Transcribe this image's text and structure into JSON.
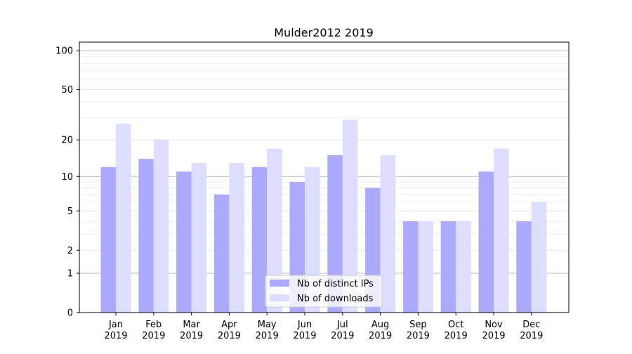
{
  "chart_data": {
    "type": "bar",
    "title": "Mulder2012 2019",
    "xlabel": "",
    "ylabel": "",
    "yscale": "symlog",
    "ylim": [
      0,
      116
    ],
    "yticks": [
      0,
      1,
      2,
      5,
      10,
      20,
      50,
      100
    ],
    "grid": true,
    "legend_placement": "bottom-center",
    "categories": [
      "Jan\n2019",
      "Feb\n2019",
      "Mar\n2019",
      "Apr\n2019",
      "May\n2019",
      "Jun\n2019",
      "Jul\n2019",
      "Aug\n2019",
      "Sep\n2019",
      "Oct\n2019",
      "Nov\n2019",
      "Dec\n2019"
    ],
    "series": [
      {
        "name": "Nb of distinct IPs",
        "color": "#aaaaff",
        "values": [
          12,
          14,
          11,
          7,
          12,
          9,
          15,
          8,
          4,
          4,
          11,
          4
        ]
      },
      {
        "name": "Nb of downloads",
        "color": "#ddddff",
        "values": [
          27,
          20,
          13,
          13,
          17,
          12,
          29,
          15,
          4,
          4,
          17,
          6
        ]
      }
    ]
  }
}
